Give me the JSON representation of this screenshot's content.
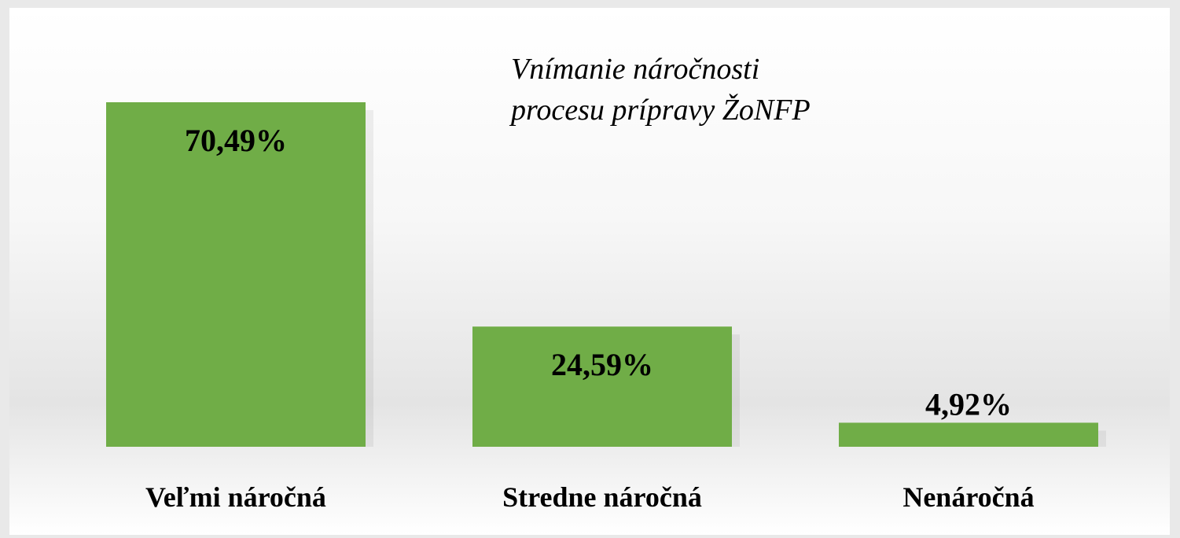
{
  "chart_data": {
    "type": "bar",
    "title": "Vnímanie náročnosti procesu prípravy ŽoNFP",
    "categories": [
      "Veľmi náročná",
      "Stredne náročná",
      "Nenáročná"
    ],
    "values": [
      70.49,
      24.59,
      4.92
    ],
    "value_labels": [
      "70,49%",
      "24,59%",
      "4,92%"
    ],
    "color": "#70ad47"
  }
}
